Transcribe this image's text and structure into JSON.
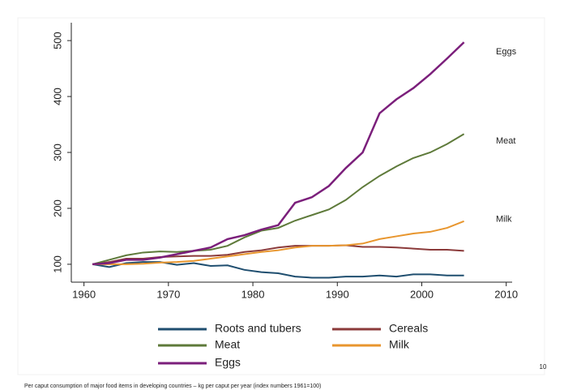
{
  "chart_data": {
    "type": "line",
    "x": [
      1961,
      1963,
      1965,
      1967,
      1969,
      1971,
      1973,
      1975,
      1977,
      1979,
      1981,
      1983,
      1985,
      1987,
      1989,
      1991,
      1993,
      1995,
      1997,
      1999,
      2001,
      2003,
      2005
    ],
    "series": [
      {
        "name": "Roots and tubers",
        "color": "#1f4e6f",
        "values": [
          100,
          95,
          102,
          104,
          104,
          99,
          102,
          97,
          98,
          90,
          86,
          84,
          78,
          76,
          76,
          78,
          78,
          80,
          78,
          82,
          82,
          80,
          80
        ]
      },
      {
        "name": "Cereals",
        "color": "#8b3a3a",
        "values": [
          100,
          104,
          110,
          110,
          113,
          114,
          115,
          115,
          117,
          122,
          125,
          130,
          133,
          133,
          133,
          134,
          131,
          131,
          130,
          128,
          126,
          126,
          124
        ]
      },
      {
        "name": "Meat",
        "color": "#5e7a3a",
        "values": [
          100,
          108,
          116,
          121,
          123,
          122,
          124,
          126,
          133,
          148,
          160,
          165,
          178,
          188,
          198,
          215,
          238,
          258,
          275,
          290,
          300,
          315,
          333
        ]
      },
      {
        "name": "Milk",
        "color": "#e8962e",
        "values": [
          100,
          100,
          100,
          101,
          103,
          104,
          106,
          110,
          114,
          118,
          122,
          125,
          130,
          133,
          133,
          134,
          137,
          145,
          150,
          155,
          158,
          165,
          177
        ]
      },
      {
        "name": "Eggs",
        "color": "#7b1f7b",
        "values": [
          100,
          102,
          108,
          108,
          112,
          118,
          124,
          130,
          145,
          152,
          162,
          170,
          210,
          220,
          240,
          272,
          300,
          370,
          395,
          415,
          440,
          468,
          497
        ]
      }
    ],
    "annotations": [
      "Eggs",
      "Meat",
      "Milk"
    ],
    "annotation_values": [
      480,
      320,
      180
    ],
    "xlim": [
      1958.5,
      2010.7
    ],
    "xticks": [
      1960,
      1970,
      1980,
      1990,
      2000,
      2010
    ],
    "ylim": [
      68,
      532
    ],
    "yticks": [
      100,
      200,
      300,
      400,
      500
    ],
    "caption": "Per caput consumption of major food items in developing countries – kg per caput per year (index numbers 1961=100)",
    "page_number": "10"
  }
}
